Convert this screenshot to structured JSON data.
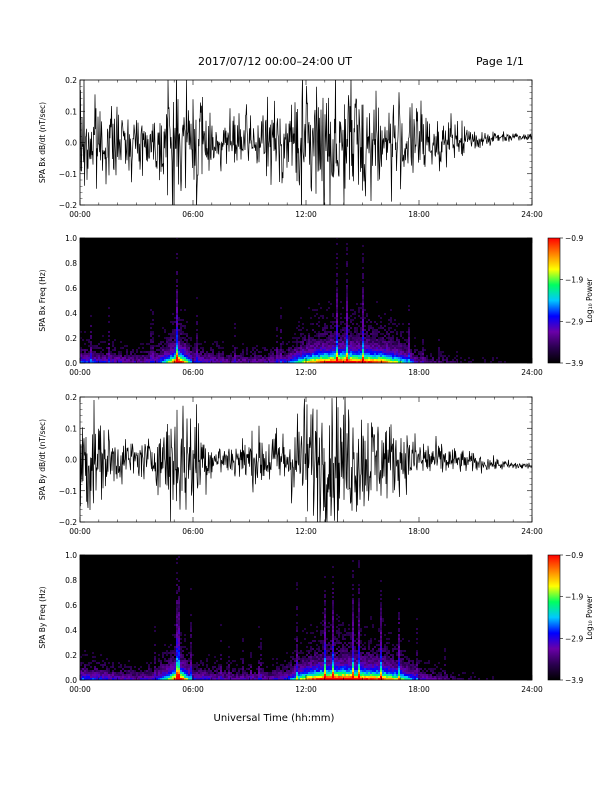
{
  "header": {
    "title": "2017/07/12  00:00–24:00 UT",
    "page": "Page 1/1"
  },
  "xlabel": "Universal Time (hh:mm)",
  "colors": {
    "trace": "#000000",
    "spectrogram_scale": [
      "#000000",
      "#2a0050",
      "#6a00a8",
      "#0000ff",
      "#00c8ff",
      "#00ff60",
      "#ffff00",
      "#ff8000",
      "#ff0000"
    ]
  },
  "chart_data": [
    {
      "type": "line",
      "ylabel": "SPA Bx dB/dt (nT/sec)",
      "xlim": [
        0,
        24
      ],
      "x_unit": "hours UT",
      "ylim": [
        -0.2,
        0.2
      ],
      "xticks": [
        "00:00",
        "06:00",
        "12:00",
        "18:00",
        "24:00"
      ],
      "yticks": [
        "−0.2",
        "−0.1",
        "0.0",
        "0.1",
        "0.2"
      ],
      "envelope": {
        "x": [
          0,
          0.5,
          1,
          2,
          3,
          4,
          4.8,
          5.0,
          5.5,
          6.0,
          7,
          8,
          9,
          10,
          11,
          11.8,
          12,
          13,
          14,
          15,
          16,
          17,
          18,
          19,
          20,
          21,
          22,
          23,
          24
        ],
        "amplitude": [
          0.2,
          0.2,
          0.13,
          0.1,
          0.08,
          0.09,
          0.2,
          0.2,
          0.2,
          0.2,
          0.08,
          0.08,
          0.1,
          0.12,
          0.12,
          0.2,
          0.2,
          0.2,
          0.2,
          0.2,
          0.15,
          0.13,
          0.12,
          0.08,
          0.06,
          0.04,
          0.02,
          0.015,
          0.012
        ],
        "center": [
          0,
          0,
          0,
          0,
          0,
          0,
          0,
          0,
          0,
          0,
          0,
          0,
          0,
          0,
          0,
          0,
          0,
          0,
          0,
          0,
          0,
          0,
          0,
          0,
          0.005,
          0.01,
          0.015,
          0.02,
          0.02
        ]
      }
    },
    {
      "type": "heatmap",
      "ylabel": "SPA Bx Freq (Hz)",
      "xlim": [
        0,
        24
      ],
      "ylim": [
        0,
        1
      ],
      "xticks": [
        "00:00",
        "06:00",
        "12:00",
        "18:00",
        "24:00"
      ],
      "yticks": [
        "0.0",
        "0.2",
        "0.4",
        "0.6",
        "0.8",
        "1.0"
      ],
      "colorbar": {
        "label": "Log₁₀ Power",
        "range": [
          -3.9,
          -0.9
        ],
        "ticks": [
          "−0.9",
          "−1.9",
          "−2.9",
          "−3.9"
        ]
      },
      "activity": {
        "x": [
          0,
          1,
          2,
          3,
          4,
          4.8,
          5.2,
          6,
          8,
          10,
          11,
          12,
          13,
          14,
          15,
          16,
          17,
          18,
          20,
          22,
          24
        ],
        "level": [
          0.35,
          0.3,
          0.25,
          0.22,
          0.25,
          0.6,
          1.0,
          0.3,
          0.2,
          0.22,
          0.3,
          0.65,
          0.85,
          0.9,
          0.85,
          0.8,
          0.55,
          0.2,
          0.08,
          0.05,
          0.03
        ]
      }
    },
    {
      "type": "line",
      "ylabel": "SPA By dB/dt (nT/sec)",
      "xlim": [
        0,
        24
      ],
      "x_unit": "hours UT",
      "ylim": [
        -0.2,
        0.2
      ],
      "xticks": [
        "00:00",
        "06:00",
        "12:00",
        "18:00",
        "24:00"
      ],
      "yticks": [
        "−0.2",
        "−0.1",
        "0.0",
        "0.1",
        "0.2"
      ],
      "envelope": {
        "x": [
          0,
          0.5,
          1,
          2,
          3,
          4,
          4.8,
          5.0,
          5.5,
          6.0,
          7,
          8,
          9,
          10,
          11,
          11.8,
          12,
          13,
          14,
          15,
          16,
          17,
          18,
          19,
          20,
          21,
          22,
          23,
          24
        ],
        "amplitude": [
          0.2,
          0.2,
          0.12,
          0.08,
          0.06,
          0.07,
          0.2,
          0.2,
          0.2,
          0.2,
          0.05,
          0.06,
          0.08,
          0.1,
          0.1,
          0.2,
          0.2,
          0.2,
          0.2,
          0.18,
          0.14,
          0.1,
          0.08,
          0.06,
          0.04,
          0.03,
          0.02,
          0.015,
          0.012
        ],
        "center": [
          0,
          0,
          0,
          0,
          0,
          0,
          0,
          0,
          0,
          0,
          0,
          0,
          0,
          0,
          0,
          0,
          0,
          0,
          0,
          0,
          0,
          0,
          0,
          0,
          -0.005,
          -0.01,
          -0.015,
          -0.02,
          -0.02
        ]
      }
    },
    {
      "type": "heatmap",
      "ylabel": "SPA By Freq (Hz)",
      "xlim": [
        0,
        24
      ],
      "ylim": [
        0,
        1
      ],
      "xticks": [
        "00:00",
        "06:00",
        "12:00",
        "18:00",
        "24:00"
      ],
      "yticks": [
        "0.0",
        "0.2",
        "0.4",
        "0.6",
        "0.8",
        "1.0"
      ],
      "colorbar": {
        "label": "Log₁₀ Power",
        "range": [
          -3.9,
          -0.9
        ],
        "ticks": [
          "−0.9",
          "−1.9",
          "−2.9",
          "−3.9"
        ]
      },
      "activity": {
        "x": [
          0,
          1,
          2,
          3,
          4,
          4.8,
          5.2,
          6,
          8,
          10,
          11,
          12,
          13,
          14,
          15,
          16,
          17,
          18,
          20,
          22,
          24
        ],
        "level": [
          0.35,
          0.3,
          0.25,
          0.22,
          0.25,
          0.6,
          1.0,
          0.3,
          0.2,
          0.22,
          0.3,
          0.7,
          0.9,
          0.95,
          0.85,
          0.8,
          0.6,
          0.25,
          0.1,
          0.05,
          0.03
        ]
      }
    }
  ]
}
